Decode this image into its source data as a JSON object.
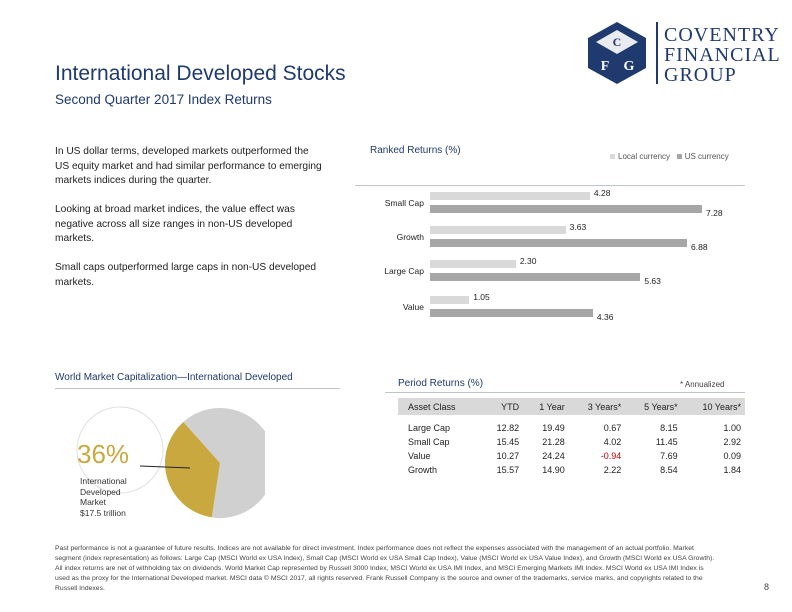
{
  "header": {
    "title": "International Developed Stocks",
    "subtitle": "Second Quarter 2017 Index Returns"
  },
  "logo": {
    "line1": "COVENTRY",
    "line2": "FINANCIAL",
    "line3": "GROUP",
    "mark_letters": [
      "C",
      "F",
      "G"
    ]
  },
  "body_text": {
    "p1": "In US dollar terms, developed markets outperformed the US equity market and had similar performance to emerging markets indices during the quarter.",
    "p2": "Looking at broad market indices, the value effect was negative across all size ranges in non-US developed markets.",
    "p3": "Small caps outperformed large caps in non-US developed markets."
  },
  "ranked_returns": {
    "title": "Ranked Returns (%)",
    "legend": [
      {
        "label": "Local currency",
        "color": "#d9d9d9"
      },
      {
        "label": "US currency",
        "color": "#a6a6a6"
      }
    ]
  },
  "chart_data": {
    "type": "bar",
    "title": "Ranked Returns (%)",
    "categories": [
      "Small Cap",
      "Growth",
      "Large Cap",
      "Value"
    ],
    "series": [
      {
        "name": "Local currency",
        "values": [
          4.28,
          3.63,
          2.3,
          1.05
        ]
      },
      {
        "name": "US currency",
        "values": [
          7.28,
          6.88,
          5.63,
          4.36
        ]
      }
    ],
    "value_labels": {
      "Local currency": [
        "4.28",
        "3.63",
        "2.30",
        "1.05"
      ],
      "US currency": [
        "7.28",
        "6.88",
        "5.63",
        "4.36"
      ]
    },
    "xlim": [
      0,
      7.5
    ],
    "orientation": "horizontal",
    "legend": "top-right"
  },
  "market_cap": {
    "title": "World Market Capitalization—International Developed",
    "percent": "36%",
    "share": 0.36,
    "label_lines": [
      "International",
      "Developed",
      "Market",
      "$17.5 trillion"
    ],
    "colors": {
      "highlight": "#c9a93f",
      "rest": "#d0d0d0"
    }
  },
  "period_returns": {
    "title": "Period Returns (%)",
    "note": "* Annualized",
    "columns": [
      "Asset Class",
      "YTD",
      "1 Year",
      "3 Years*",
      "5 Years*",
      "10 Years*"
    ],
    "rows": [
      [
        "Large Cap",
        "12.82",
        "19.49",
        "0.67",
        "8.15",
        "1.00"
      ],
      [
        "Small Cap",
        "15.45",
        "21.28",
        "4.02",
        "11.45",
        "2.92"
      ],
      [
        "Value",
        "10.27",
        "24.24",
        "-0.94",
        "7.69",
        "0.09"
      ],
      [
        "Growth",
        "15.57",
        "14.90",
        "2.22",
        "8.54",
        "1.84"
      ]
    ]
  },
  "footer": {
    "disclaimer": "Past performance is not a guarantee of future results. Indices are not available for direct investment. Index performance does not reflect the expenses associated with the management of an actual portfolio. Market segment (index representation) as follows: Large Cap (MSCI World ex USA Index), Small Cap (MSCI World ex USA Small Cap Index), Value (MSCI World ex USA Value Index), and Growth (MSCI World ex USA Growth). All index returns are net of withholding tax on dividends. World Market Cap represented by Russell 3000 Index, MSCI World ex USA IMI Index, and MSCI Emerging Markets IMI Index. MSCI World ex USA IMI Index is used as the proxy for the International Developed market. MSCI data © MSCI 2017, all rights reserved. Frank Russell Company is the source and owner of the trademarks, service marks, and copyrights related to the Russell Indexes.",
    "page_number": "8"
  }
}
